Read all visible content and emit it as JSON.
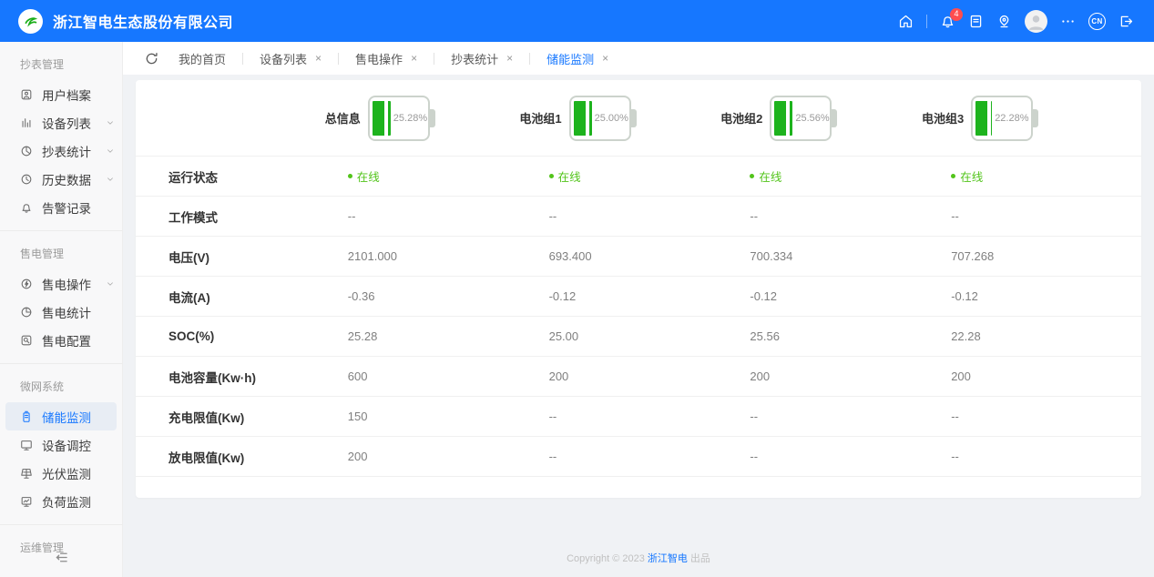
{
  "header": {
    "company_name": "浙江智电生态股份有限公司",
    "notification_count": "4",
    "language": "CN",
    "accent_color": "#1677ff"
  },
  "tabs": [
    {
      "label": "我的首页",
      "closable": false,
      "active": false
    },
    {
      "label": "设备列表",
      "closable": true,
      "active": false
    },
    {
      "label": "售电操作",
      "closable": true,
      "active": false
    },
    {
      "label": "抄表统计",
      "closable": true,
      "active": false
    },
    {
      "label": "储能监测",
      "closable": true,
      "active": true
    }
  ],
  "sidebar": {
    "groups": [
      {
        "title": "抄表管理",
        "items": [
          {
            "label": "用户档案",
            "icon": "user-archive-icon",
            "expandable": false,
            "active": false
          },
          {
            "label": "设备列表",
            "icon": "device-list-icon",
            "expandable": true,
            "active": false
          },
          {
            "label": "抄表统计",
            "icon": "meter-stats-icon",
            "expandable": true,
            "active": false
          },
          {
            "label": "历史数据",
            "icon": "history-icon",
            "expandable": true,
            "active": false
          },
          {
            "label": "告警记录",
            "icon": "alarm-icon",
            "expandable": false,
            "active": false
          }
        ]
      },
      {
        "title": "售电管理",
        "items": [
          {
            "label": "售电操作",
            "icon": "power-sale-icon",
            "expandable": true,
            "active": false
          },
          {
            "label": "售电统计",
            "icon": "sale-stats-icon",
            "expandable": false,
            "active": false
          },
          {
            "label": "售电配置",
            "icon": "sale-config-icon",
            "expandable": false,
            "active": false
          }
        ]
      },
      {
        "title": "微网系统",
        "items": [
          {
            "label": "储能监测",
            "icon": "battery-icon",
            "expandable": false,
            "active": true
          },
          {
            "label": "设备调控",
            "icon": "device-control-icon",
            "expandable": false,
            "active": false
          },
          {
            "label": "光伏监测",
            "icon": "solar-icon",
            "expandable": false,
            "active": false
          },
          {
            "label": "负荷监测",
            "icon": "load-icon",
            "expandable": false,
            "active": false
          }
        ]
      },
      {
        "title": "运维管理",
        "items": []
      }
    ]
  },
  "monitor": {
    "battery_fill_color": "#1db31d",
    "online_color": "#52c41a",
    "batteries": [
      {
        "label": "总信息",
        "soc_percent": 25.28,
        "display": "25.28%"
      },
      {
        "label": "电池组1",
        "soc_percent": 25.0,
        "display": "25.00%"
      },
      {
        "label": "电池组2",
        "soc_percent": 25.56,
        "display": "25.56%"
      },
      {
        "label": "电池组3",
        "soc_percent": 22.28,
        "display": "22.28%"
      }
    ],
    "rows": [
      {
        "label": "运行状态",
        "type": "status",
        "values": [
          "在线",
          "在线",
          "在线",
          "在线"
        ]
      },
      {
        "label": "工作模式",
        "type": "text",
        "values": [
          "--",
          "--",
          "--",
          "--"
        ]
      },
      {
        "label": "电压(V)",
        "type": "text",
        "values": [
          "2101.000",
          "693.400",
          "700.334",
          "707.268"
        ]
      },
      {
        "label": "电流(A)",
        "type": "text",
        "values": [
          "-0.36",
          "-0.12",
          "-0.12",
          "-0.12"
        ]
      },
      {
        "label": "SOC(%)",
        "type": "text",
        "values": [
          "25.28",
          "25.00",
          "25.56",
          "22.28"
        ]
      },
      {
        "label": "电池容量(Kw·h)",
        "type": "text",
        "values": [
          "600",
          "200",
          "200",
          "200"
        ]
      },
      {
        "label": "充电限值(Kw)",
        "type": "text",
        "values": [
          "150",
          "--",
          "--",
          "--"
        ]
      },
      {
        "label": "放电限值(Kw)",
        "type": "text",
        "values": [
          "200",
          "--",
          "--",
          "--"
        ]
      }
    ]
  },
  "footer": {
    "copyright": "Copyright © 2023",
    "brand": "浙江智电",
    "suffix": "出品"
  }
}
